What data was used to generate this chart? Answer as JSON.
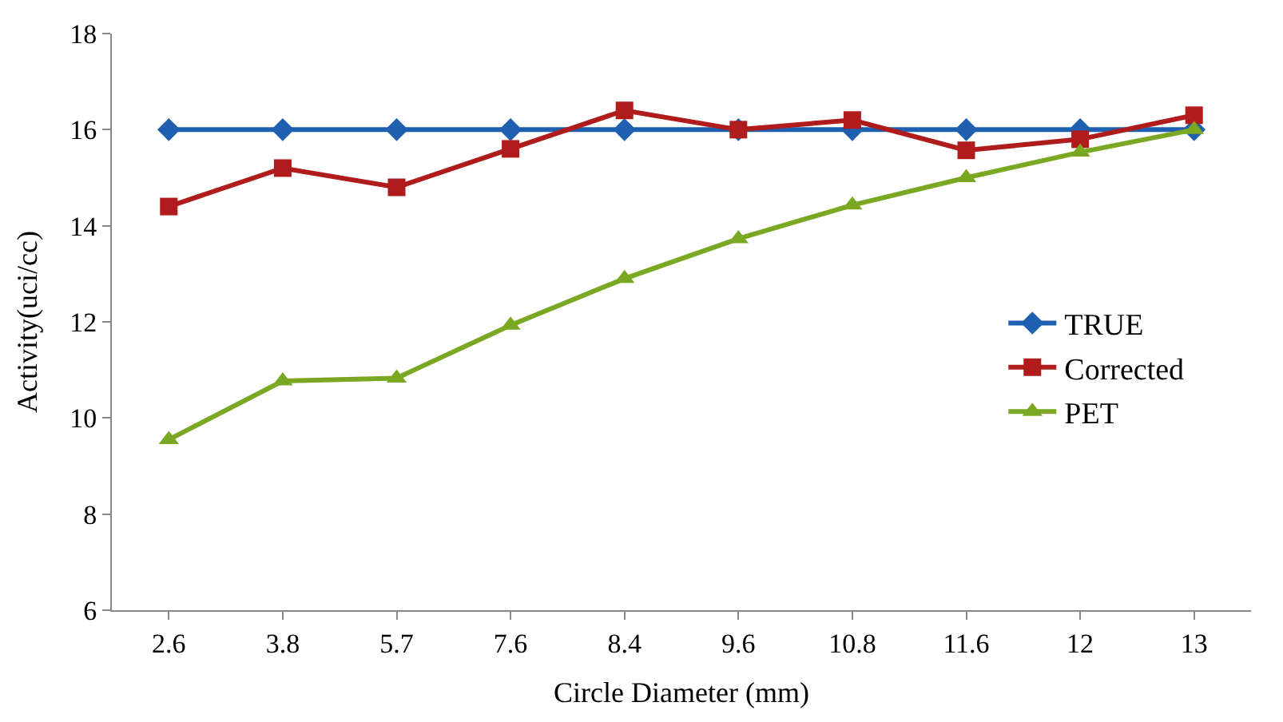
{
  "chart_data": {
    "type": "line",
    "xlabel": "Circle Diameter (mm)",
    "ylabel": "Activity(uci/cc)",
    "categories": [
      "2.6",
      "3.8",
      "5.7",
      "7.6",
      "8.4",
      "9.6",
      "10.8",
      "11.6",
      "12",
      "13"
    ],
    "ylim": [
      6,
      18
    ],
    "yticks": [
      6,
      8,
      10,
      12,
      14,
      16,
      18
    ],
    "legend": "right",
    "series": [
      {
        "name": "TRUE",
        "color": "#1f5fb0",
        "marker": "diamond",
        "values": [
          16,
          16,
          16,
          16,
          16,
          16,
          16,
          16,
          16,
          16
        ]
      },
      {
        "name": "Corrected",
        "color": "#b01c1c",
        "marker": "square",
        "values": [
          14.4,
          15.2,
          14.8,
          15.6,
          16.4,
          16.0,
          16.2,
          15.57,
          15.8,
          16.3
        ]
      },
      {
        "name": "PET",
        "color": "#7aa822",
        "marker": "triangle",
        "values": [
          9.55,
          10.77,
          10.83,
          11.93,
          12.9,
          13.73,
          14.43,
          15.0,
          15.53,
          16.0
        ]
      }
    ]
  }
}
